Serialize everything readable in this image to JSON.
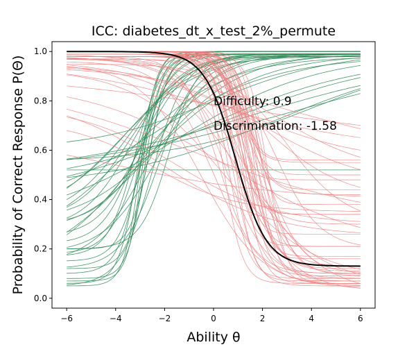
{
  "chart_data": {
    "type": "line",
    "title": "ICC: diabetes_dt_x_test_2%_permute",
    "xlabel": "Ability θ",
    "ylabel": "Probability of Correct Response P(Θ)",
    "xlim": [
      -6.6,
      6.6
    ],
    "ylim": [
      -0.04,
      1.04
    ],
    "x_ticks": [
      -6,
      -4,
      -2,
      0,
      2,
      4,
      6
    ],
    "y_ticks": [
      0.0,
      0.2,
      0.4,
      0.6,
      0.8,
      1.0
    ],
    "grid": false,
    "annotations": [
      {
        "text": "Difficulty: 0.9",
        "x": 0.0,
        "y": 0.8
      },
      {
        "text": "Discrimination: -1.58",
        "x": 0.0,
        "y": 0.7
      }
    ],
    "highlight": {
      "color": "#000000",
      "a": -1.58,
      "b": 0.9,
      "c": 0.13,
      "d": 1.0
    },
    "colors": {
      "positive": "#2e8b57",
      "negative": "#f08080"
    },
    "series": [
      {
        "group": "positive",
        "a": 3.0,
        "b": -3.0,
        "c": 0.05,
        "d": 1.0
      },
      {
        "group": "positive",
        "a": 3.2,
        "b": -2.9,
        "c": 0.07,
        "d": 1.0
      },
      {
        "group": "positive",
        "a": 2.6,
        "b": -3.1,
        "c": 0.06,
        "d": 0.99
      },
      {
        "group": "positive",
        "a": 2.8,
        "b": -2.8,
        "c": 0.08,
        "d": 1.0
      },
      {
        "group": "positive",
        "a": 2.2,
        "b": -3.0,
        "c": 0.1,
        "d": 0.99
      },
      {
        "group": "positive",
        "a": 2.4,
        "b": -2.7,
        "c": 0.12,
        "d": 0.99
      },
      {
        "group": "positive",
        "a": 2.0,
        "b": -2.9,
        "c": 0.15,
        "d": 0.99
      },
      {
        "group": "positive",
        "a": 1.8,
        "b": -3.2,
        "c": 0.17,
        "d": 1.0
      },
      {
        "group": "positive",
        "a": 1.6,
        "b": -3.0,
        "c": 0.18,
        "d": 0.99
      },
      {
        "group": "positive",
        "a": 2.5,
        "b": -2.6,
        "c": 0.2,
        "d": 1.0
      },
      {
        "group": "positive",
        "a": 1.4,
        "b": -3.1,
        "c": 0.22,
        "d": 0.99
      },
      {
        "group": "positive",
        "a": 1.2,
        "b": -3.0,
        "c": 0.25,
        "d": 0.98
      },
      {
        "group": "positive",
        "a": 1.0,
        "b": -3.3,
        "c": 0.28,
        "d": 0.99
      },
      {
        "group": "positive",
        "a": 1.1,
        "b": -2.8,
        "c": 0.3,
        "d": 0.99
      },
      {
        "group": "positive",
        "a": 0.9,
        "b": -3.4,
        "c": 0.31,
        "d": 0.98
      },
      {
        "group": "positive",
        "a": 0.8,
        "b": -3.5,
        "c": 0.32,
        "d": 0.99
      },
      {
        "group": "positive",
        "a": 0.7,
        "b": -3.6,
        "c": 0.35,
        "d": 0.98
      },
      {
        "group": "positive",
        "a": 0.9,
        "b": -2.6,
        "c": 0.14,
        "d": 0.99
      },
      {
        "group": "positive",
        "a": 0.6,
        "b": -3.8,
        "c": 0.3,
        "d": 0.99
      },
      {
        "group": "positive",
        "a": 0.5,
        "b": -3.5,
        "c": 0.2,
        "d": 0.98
      },
      {
        "group": "positive",
        "a": 0.55,
        "b": -3.2,
        "c": 0.1,
        "d": 0.99
      },
      {
        "group": "positive",
        "a": 0.45,
        "b": -3.0,
        "c": 0.08,
        "d": 0.99
      },
      {
        "group": "positive",
        "a": 0.6,
        "b": -2.0,
        "c": 0.3,
        "d": 0.99
      },
      {
        "group": "positive",
        "a": 0.4,
        "b": -2.5,
        "c": 0.35,
        "d": 0.98
      },
      {
        "group": "positive",
        "a": 0.35,
        "b": -1.5,
        "c": 0.3,
        "d": 0.99
      },
      {
        "group": "positive",
        "a": 0.3,
        "b": -0.5,
        "c": 0.4,
        "d": 0.98
      },
      {
        "group": "positive",
        "a": 0.28,
        "b": 0.5,
        "c": 0.45,
        "d": 0.99
      },
      {
        "group": "positive",
        "a": 0.25,
        "b": 1.5,
        "c": 0.5,
        "d": 0.98
      },
      {
        "group": "positive",
        "a": 0.3,
        "b": 2.5,
        "c": 0.45,
        "d": 0.99
      },
      {
        "group": "positive",
        "a": 0.22,
        "b": 3.0,
        "c": 0.5,
        "d": 1.0
      },
      {
        "group": "positive",
        "a": 0.35,
        "b": 4.0,
        "c": 0.55,
        "d": 0.99
      },
      {
        "group": "positive",
        "a": 0.4,
        "b": 0.0,
        "c": 0.6,
        "d": 1.0
      },
      {
        "group": "positive",
        "a": 0.0,
        "b": 0.0,
        "c": 0.52,
        "d": 0.52
      },
      {
        "group": "positive",
        "a": 1.5,
        "b": -2.5,
        "c": 0.05,
        "d": 0.98
      },
      {
        "group": "positive",
        "a": 1.3,
        "b": -2.2,
        "c": 0.12,
        "d": 0.99
      },
      {
        "group": "positive",
        "a": 1.7,
        "b": -1.8,
        "c": 0.2,
        "d": 0.99
      },
      {
        "group": "positive",
        "a": 0.9,
        "b": -2.2,
        "c": 0.18,
        "d": 0.99
      },
      {
        "group": "positive",
        "a": 0.75,
        "b": -2.4,
        "c": 0.27,
        "d": 0.99
      },
      {
        "group": "negative",
        "a": -2.6,
        "b": 0.4,
        "c": 0.06,
        "d": 1.0
      },
      {
        "group": "negative",
        "a": -2.4,
        "b": 0.6,
        "c": 0.08,
        "d": 0.99
      },
      {
        "group": "negative",
        "a": -2.2,
        "b": 0.8,
        "c": 0.05,
        "d": 0.98
      },
      {
        "group": "negative",
        "a": -2.8,
        "b": 0.9,
        "c": 0.07,
        "d": 1.0
      },
      {
        "group": "negative",
        "a": -2.0,
        "b": 1.0,
        "c": 0.09,
        "d": 0.99
      },
      {
        "group": "negative",
        "a": -1.8,
        "b": 1.1,
        "c": 0.1,
        "d": 0.98
      },
      {
        "group": "negative",
        "a": -2.5,
        "b": 1.2,
        "c": 0.06,
        "d": 0.99
      },
      {
        "group": "negative",
        "a": -1.6,
        "b": 1.3,
        "c": 0.11,
        "d": 0.99
      },
      {
        "group": "negative",
        "a": -2.3,
        "b": 1.4,
        "c": 0.07,
        "d": 0.98
      },
      {
        "group": "negative",
        "a": -1.9,
        "b": 1.5,
        "c": 0.12,
        "d": 1.0
      },
      {
        "group": "negative",
        "a": -2.1,
        "b": 1.6,
        "c": 0.08,
        "d": 0.99
      },
      {
        "group": "negative",
        "a": -1.7,
        "b": 1.7,
        "c": 0.13,
        "d": 0.99
      },
      {
        "group": "negative",
        "a": -2.4,
        "b": 1.8,
        "c": 0.06,
        "d": 1.0
      },
      {
        "group": "negative",
        "a": -1.5,
        "b": 1.9,
        "c": 0.09,
        "d": 0.98
      },
      {
        "group": "negative",
        "a": -2.2,
        "b": 2.0,
        "c": 0.07,
        "d": 0.99
      },
      {
        "group": "negative",
        "a": -1.9,
        "b": 2.1,
        "c": 0.1,
        "d": 1.0
      },
      {
        "group": "negative",
        "a": -2.6,
        "b": 2.2,
        "c": 0.06,
        "d": 0.99
      },
      {
        "group": "negative",
        "a": -1.4,
        "b": 0.2,
        "c": 0.1,
        "d": 0.98
      },
      {
        "group": "negative",
        "a": -1.2,
        "b": 0.5,
        "c": 0.08,
        "d": 0.97
      },
      {
        "group": "negative",
        "a": -1.0,
        "b": 0.0,
        "c": 0.05,
        "d": 0.96
      },
      {
        "group": "negative",
        "a": -0.9,
        "b": 1.0,
        "c": 0.03,
        "d": 0.97
      },
      {
        "group": "negative",
        "a": -0.8,
        "b": -0.5,
        "c": 0.04,
        "d": 0.95
      },
      {
        "group": "negative",
        "a": -0.7,
        "b": 1.5,
        "c": 0.02,
        "d": 0.98
      },
      {
        "group": "negative",
        "a": -3.0,
        "b": 1.2,
        "c": 0.34,
        "d": 1.0
      },
      {
        "group": "negative",
        "a": -2.7,
        "b": 1.0,
        "c": 0.34,
        "d": 0.99
      },
      {
        "group": "negative",
        "a": -2.9,
        "b": 1.4,
        "c": 0.21,
        "d": 1.0
      },
      {
        "group": "negative",
        "a": -2.5,
        "b": 0.8,
        "c": 0.21,
        "d": 0.98
      },
      {
        "group": "negative",
        "a": -3.2,
        "b": 1.6,
        "c": 0.17,
        "d": 1.0
      },
      {
        "group": "negative",
        "a": -2.8,
        "b": 1.3,
        "c": 0.16,
        "d": 0.99
      },
      {
        "group": "negative",
        "a": -3.1,
        "b": 1.1,
        "c": 0.26,
        "d": 1.0
      },
      {
        "group": "negative",
        "a": -2.6,
        "b": 1.5,
        "c": 0.44,
        "d": 0.99
      },
      {
        "group": "negative",
        "a": -3.0,
        "b": 1.2,
        "c": 0.56,
        "d": 1.0
      },
      {
        "group": "negative",
        "a": -2.4,
        "b": 1.0,
        "c": 0.55,
        "d": 0.99
      },
      {
        "group": "negative",
        "a": -2.9,
        "b": 0.9,
        "c": 0.48,
        "d": 1.0
      },
      {
        "group": "negative",
        "a": -2.7,
        "b": 1.3,
        "c": 0.5,
        "d": 0.98
      },
      {
        "group": "negative",
        "a": -3.3,
        "b": 1.7,
        "c": 0.38,
        "d": 1.0
      },
      {
        "group": "negative",
        "a": -0.6,
        "b": 2.0,
        "c": 0.4,
        "d": 0.99
      },
      {
        "group": "negative",
        "a": -0.5,
        "b": 2.5,
        "c": 0.5,
        "d": 0.98
      },
      {
        "group": "negative",
        "a": -0.4,
        "b": 1.0,
        "c": 0.55,
        "d": 0.97
      },
      {
        "group": "negative",
        "a": -0.3,
        "b": 0.0,
        "c": 0.6,
        "d": 0.96
      },
      {
        "group": "negative",
        "a": -0.3,
        "b": 3.0,
        "c": 0.58,
        "d": 0.95
      },
      {
        "group": "negative",
        "a": -0.2,
        "b": 1.0,
        "c": 0.62,
        "d": 0.92
      },
      {
        "group": "negative",
        "a": -0.25,
        "b": -1.0,
        "c": 0.3,
        "d": 0.9
      },
      {
        "group": "negative",
        "a": -0.35,
        "b": 0.5,
        "c": 0.2,
        "d": 0.88
      },
      {
        "group": "negative",
        "a": -0.45,
        "b": -2.0,
        "c": 0.25,
        "d": 0.82
      },
      {
        "group": "negative",
        "a": -0.5,
        "b": -1.5,
        "c": 0.3,
        "d": 0.78
      },
      {
        "group": "negative",
        "a": -0.6,
        "b": -2.5,
        "c": 0.35,
        "d": 0.72
      },
      {
        "group": "negative",
        "a": -0.3,
        "b": -4.0,
        "c": 0.4,
        "d": 0.68
      },
      {
        "group": "negative",
        "a": -0.8,
        "b": 3.0,
        "c": 0.3,
        "d": 0.95
      },
      {
        "group": "negative",
        "a": -1.1,
        "b": 2.5,
        "c": 0.2,
        "d": 0.97
      },
      {
        "group": "negative",
        "a": -1.3,
        "b": 2.0,
        "c": 0.1,
        "d": 0.99
      },
      {
        "group": "negative",
        "a": -0.65,
        "b": 1.2,
        "c": 0.06,
        "d": 0.94
      },
      {
        "group": "negative",
        "a": -0.55,
        "b": 0.4,
        "c": 0.08,
        "d": 0.93
      },
      {
        "group": "negative",
        "a": -1.5,
        "b": 0.9,
        "c": 0.3,
        "d": 0.97
      },
      {
        "group": "negative",
        "a": -1.8,
        "b": 1.2,
        "c": 0.42,
        "d": 0.99
      },
      {
        "group": "negative",
        "a": -0.45,
        "b": 2.0,
        "c": 0.45,
        "d": 0.95
      }
    ]
  }
}
